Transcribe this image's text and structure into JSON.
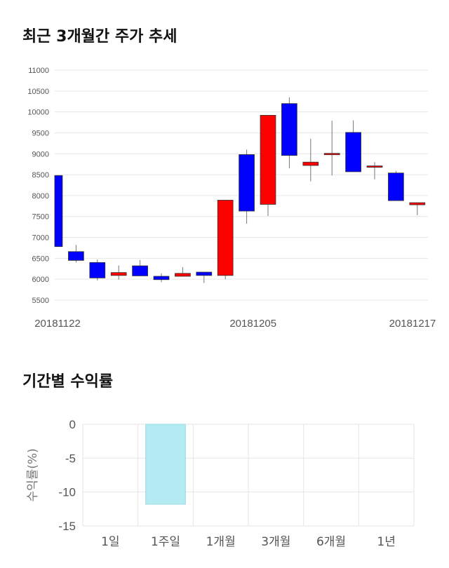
{
  "sections": {
    "price_title": "최근 3개월간 주가 추세",
    "return_title": "기간별 수익률"
  },
  "colors": {
    "up": "#ff0000",
    "down": "#0000ff",
    "bar": "#b3ebf2",
    "grid": "#e6e6e6"
  },
  "chart_data": [
    {
      "type": "candlestick",
      "title": "최근 3개월간 주가 추세",
      "ylim": [
        5500,
        11000
      ],
      "yticks": [
        5500,
        6000,
        6500,
        7000,
        7500,
        8000,
        8500,
        9000,
        9500,
        10000,
        10500,
        11000
      ],
      "x_tick_labels": [
        "20181122",
        "20181205",
        "20181217"
      ],
      "grid": true,
      "candles": [
        {
          "open": 8480,
          "close": 6780,
          "high": 8480,
          "low": 6780
        },
        {
          "open": 6660,
          "close": 6450,
          "high": 6820,
          "low": 6400
        },
        {
          "open": 6400,
          "close": 6030,
          "high": 6470,
          "low": 5970
        },
        {
          "open": 6090,
          "close": 6160,
          "high": 6330,
          "low": 5990
        },
        {
          "open": 6320,
          "close": 6080,
          "high": 6460,
          "low": 6080
        },
        {
          "open": 6070,
          "close": 5990,
          "high": 6140,
          "low": 5930
        },
        {
          "open": 6070,
          "close": 6140,
          "high": 6290,
          "low": 6070
        },
        {
          "open": 6170,
          "close": 6090,
          "high": 6170,
          "low": 5910
        },
        {
          "open": 6090,
          "close": 7890,
          "high": 7890,
          "low": 6000
        },
        {
          "open": 8980,
          "close": 7630,
          "high": 9100,
          "low": 7330
        },
        {
          "open": 7790,
          "close": 9920,
          "high": 9920,
          "low": 7510
        },
        {
          "open": 10200,
          "close": 8960,
          "high": 10350,
          "low": 8650
        },
        {
          "open": 8720,
          "close": 8800,
          "high": 9360,
          "low": 8340
        },
        {
          "open": 9000,
          "close": 9010,
          "high": 9790,
          "low": 8480
        },
        {
          "open": 9510,
          "close": 8570,
          "high": 9800,
          "low": 8570
        },
        {
          "open": 8680,
          "close": 8710,
          "high": 8800,
          "low": 8390
        },
        {
          "open": 8540,
          "close": 7880,
          "high": 8590,
          "low": 7880
        },
        {
          "open": 7780,
          "close": 7830,
          "high": 7830,
          "low": 7530
        }
      ]
    },
    {
      "type": "bar",
      "title": "기간별 수익률",
      "categories": [
        "1일",
        "1주일",
        "1개월",
        "3개월",
        "6개월",
        "1년"
      ],
      "values": [
        null,
        -11.8,
        null,
        null,
        null,
        null
      ],
      "ylabel": "수익률(%)",
      "ylim": [
        -15,
        0
      ],
      "yticks": [
        0,
        -5,
        -10,
        -15
      ],
      "grid": true
    }
  ]
}
